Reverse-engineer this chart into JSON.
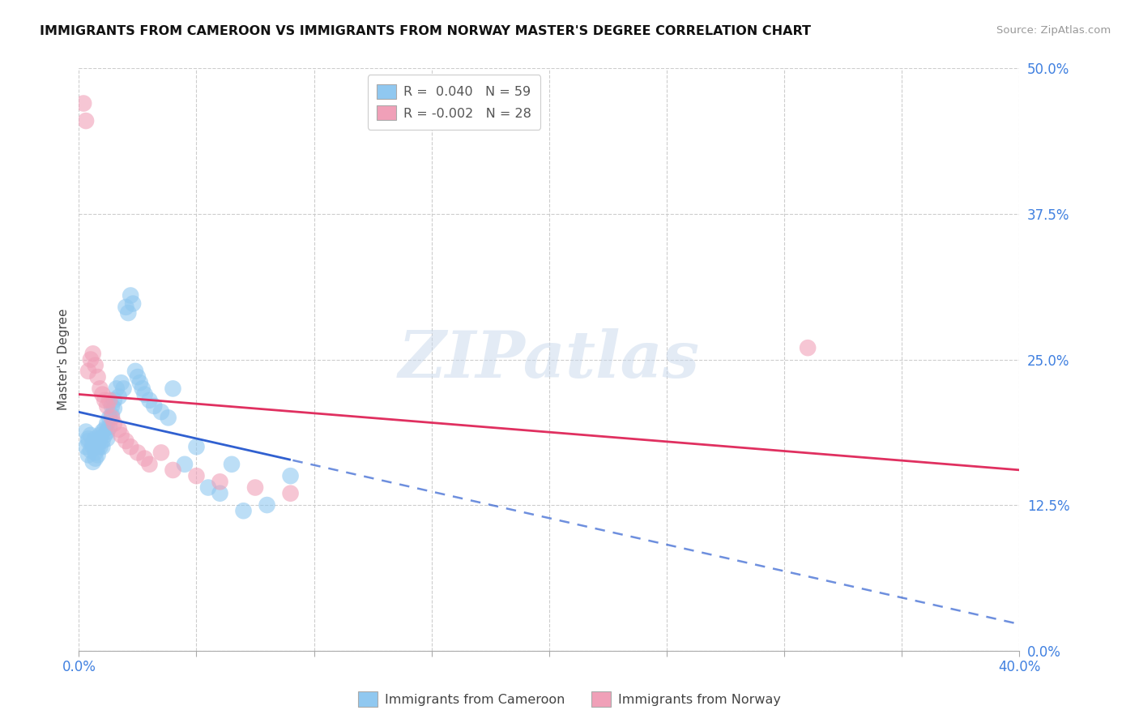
{
  "title": "IMMIGRANTS FROM CAMEROON VS IMMIGRANTS FROM NORWAY MASTER'S DEGREE CORRELATION CHART",
  "source": "Source: ZipAtlas.com",
  "ylabel": "Master's Degree",
  "xlim": [
    0.0,
    0.4
  ],
  "ylim": [
    0.0,
    0.5
  ],
  "ytick_positions": [
    0.0,
    0.125,
    0.25,
    0.375,
    0.5
  ],
  "ytick_labels": [
    "0.0%",
    "12.5%",
    "25.0%",
    "37.5%",
    "50.0%"
  ],
  "xtick_positions": [
    0.0,
    0.05,
    0.1,
    0.15,
    0.2,
    0.25,
    0.3,
    0.35,
    0.4
  ],
  "grid_color": "#c8c8c8",
  "background_color": "#ffffff",
  "watermark": "ZIPatlas",
  "color_cameroon": "#90C8F0",
  "color_norway": "#F0A0B8",
  "trend_color_cameroon": "#3060D0",
  "trend_color_norway": "#E03060",
  "tick_color": "#4080E0",
  "cameroon_x": [
    0.003,
    0.004,
    0.004,
    0.005,
    0.006,
    0.006,
    0.007,
    0.007,
    0.008,
    0.008,
    0.009,
    0.009,
    0.01,
    0.01,
    0.011,
    0.011,
    0.012,
    0.012,
    0.013,
    0.013,
    0.014,
    0.014,
    0.015,
    0.015,
    0.016,
    0.017,
    0.018,
    0.019,
    0.02,
    0.021,
    0.022,
    0.023,
    0.024,
    0.025,
    0.026,
    0.027,
    0.028,
    0.03,
    0.032,
    0.035,
    0.038,
    0.04,
    0.045,
    0.05,
    0.055,
    0.06,
    0.065,
    0.07,
    0.08,
    0.09,
    0.003,
    0.004,
    0.005,
    0.006,
    0.007,
    0.008,
    0.009,
    0.01,
    0.012
  ],
  "cameroon_y": [
    0.175,
    0.168,
    0.18,
    0.172,
    0.162,
    0.175,
    0.17,
    0.165,
    0.175,
    0.168,
    0.182,
    0.175,
    0.188,
    0.18,
    0.19,
    0.185,
    0.195,
    0.188,
    0.2,
    0.192,
    0.21,
    0.202,
    0.215,
    0.208,
    0.225,
    0.218,
    0.23,
    0.225,
    0.295,
    0.29,
    0.305,
    0.298,
    0.24,
    0.235,
    0.23,
    0.225,
    0.22,
    0.215,
    0.21,
    0.205,
    0.2,
    0.225,
    0.16,
    0.175,
    0.14,
    0.135,
    0.16,
    0.12,
    0.125,
    0.15,
    0.188,
    0.182,
    0.185,
    0.178,
    0.182,
    0.178,
    0.185,
    0.175,
    0.182
  ],
  "norway_x": [
    0.002,
    0.003,
    0.004,
    0.005,
    0.006,
    0.007,
    0.008,
    0.009,
    0.01,
    0.011,
    0.012,
    0.013,
    0.014,
    0.015,
    0.017,
    0.018,
    0.02,
    0.022,
    0.025,
    0.028,
    0.03,
    0.035,
    0.04,
    0.05,
    0.06,
    0.075,
    0.09,
    0.31
  ],
  "norway_y": [
    0.47,
    0.455,
    0.24,
    0.25,
    0.255,
    0.245,
    0.235,
    0.225,
    0.22,
    0.215,
    0.21,
    0.215,
    0.2,
    0.195,
    0.19,
    0.185,
    0.18,
    0.175,
    0.17,
    0.165,
    0.16,
    0.17,
    0.155,
    0.15,
    0.145,
    0.14,
    0.135,
    0.26
  ]
}
